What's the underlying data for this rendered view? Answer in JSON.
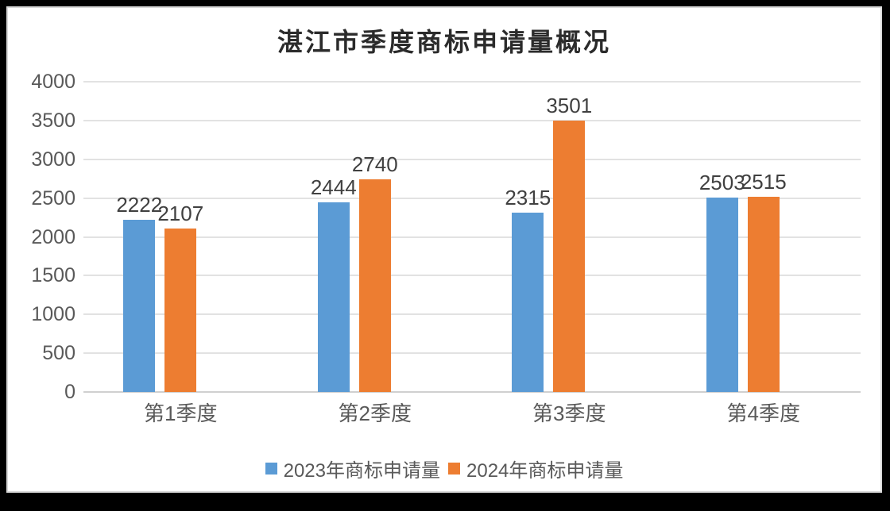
{
  "chart_data": {
    "type": "bar",
    "title": "湛江市季度商标申请量概况",
    "categories": [
      "第1季度",
      "第2季度",
      "第3季度",
      "第4季度"
    ],
    "series": [
      {
        "name": "2023年商标申请量",
        "color": "#5B9BD5",
        "values": [
          2222,
          2444,
          2315,
          2503
        ]
      },
      {
        "name": "2024年商标申请量",
        "color": "#ED7D31",
        "values": [
          2107,
          2740,
          3501,
          2515
        ]
      }
    ],
    "ylim": [
      0,
      4000
    ],
    "yticks": [
      0,
      500,
      1000,
      1500,
      2000,
      2500,
      3000,
      3500,
      4000
    ],
    "xlabel": "",
    "ylabel": "",
    "grid": "horizontal",
    "legend_position": "bottom",
    "data_labels": true
  },
  "style_colors": {
    "series_2023": "#5B9BD5",
    "series_2024": "#ED7D31",
    "gridline": "#E2E2E2",
    "axis_line": "#D0D0D0",
    "axis_text": "#595959",
    "data_label_text": "#404040",
    "title_text": "#2B2B2B",
    "outer_frame": "#000000",
    "chart_border": "#D9D9D9",
    "chart_background": "#FFFFFF"
  }
}
